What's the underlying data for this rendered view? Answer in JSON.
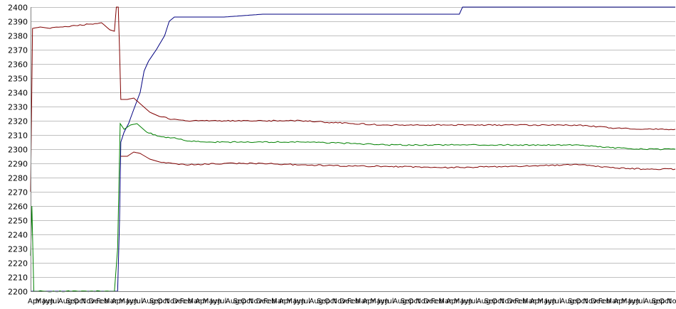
{
  "chart_data": {
    "type": "line",
    "title": "",
    "xlabel": "",
    "ylabel": "",
    "ylim": [
      2200,
      2400
    ],
    "y_ticks": [
      2200,
      2210,
      2220,
      2230,
      2240,
      2250,
      2260,
      2270,
      2280,
      2290,
      2300,
      2310,
      2320,
      2330,
      2340,
      2350,
      2360,
      2370,
      2380,
      2390,
      2400
    ],
    "grid": true,
    "legend": "none",
    "x_tick_labels": [
      "Apr",
      "May",
      "Jun",
      "Jul",
      "Aug",
      "Sep",
      "Oct",
      "Nov",
      "Dec",
      "Feb",
      "Mar",
      "Apr",
      "May",
      "Jun",
      "Jul",
      "Aug",
      "Sep",
      "Oct",
      "Nov",
      "Dec",
      "Feb",
      "Mar",
      "Apr",
      "May",
      "Jun",
      "Jul",
      "Aug",
      "Sep",
      "Oct",
      "Nov",
      "Dec",
      "Feb",
      "Mar",
      "Apr",
      "May",
      "Jun",
      "Jul",
      "Aug",
      "Sep",
      "Oct",
      "Nov",
      "Dec",
      "Feb",
      "Mar",
      "Apr",
      "May",
      "Jun",
      "Jul",
      "Aug",
      "Sep",
      "Oct",
      "Nov",
      "Dec",
      "Feb",
      "Mar",
      "Apr",
      "May",
      "Jun",
      "Jul",
      "Aug",
      "Sep",
      "Oct",
      "Nov",
      "Dec",
      "Feb",
      "Mar",
      "Apr",
      "May",
      "Jun",
      "Jul",
      "Aug",
      "Sep",
      "Oct",
      "Nov",
      "Dec",
      "Feb",
      "Mar",
      "Apr",
      "May",
      "Jun",
      "Jul",
      "Aug",
      "Sep",
      "Oct",
      "Nov"
    ],
    "x_range": [
      0,
      100
    ],
    "series": [
      {
        "color": "#000080",
        "points": [
          [
            0,
            2200
          ],
          [
            13.5,
            2200
          ],
          [
            13.8,
            2250
          ],
          [
            14.0,
            2305
          ],
          [
            14.5,
            2312
          ],
          [
            15.2,
            2318
          ],
          [
            16.0,
            2328
          ],
          [
            17.0,
            2340
          ],
          [
            17.6,
            2355
          ],
          [
            18.3,
            2362
          ],
          [
            19.5,
            2370
          ],
          [
            20.8,
            2380
          ],
          [
            21.5,
            2390
          ],
          [
            22.3,
            2393
          ],
          [
            30,
            2393
          ],
          [
            36,
            2395
          ],
          [
            50,
            2395
          ],
          [
            66.5,
            2395
          ],
          [
            67.0,
            2400
          ],
          [
            100,
            2400
          ]
        ]
      },
      {
        "color": "#008000",
        "points": [
          [
            0,
            2225
          ],
          [
            0.2,
            2260
          ],
          [
            0.5,
            2200
          ],
          [
            13.0,
            2200
          ],
          [
            13.5,
            2230
          ],
          [
            13.9,
            2318
          ],
          [
            14.5,
            2314
          ],
          [
            15.5,
            2317
          ],
          [
            16.5,
            2318
          ],
          [
            18.0,
            2312
          ],
          [
            20.0,
            2309
          ],
          [
            22.0,
            2308
          ],
          [
            24.0,
            2306
          ],
          [
            28.0,
            2305
          ],
          [
            35.0,
            2305
          ],
          [
            42.0,
            2305
          ],
          [
            50.0,
            2304
          ],
          [
            55.0,
            2303
          ],
          [
            65.0,
            2303
          ],
          [
            75.0,
            2303
          ],
          [
            85.0,
            2303
          ],
          [
            90.0,
            2301
          ],
          [
            95.0,
            2300
          ],
          [
            100.0,
            2300
          ]
        ]
      },
      {
        "color": "#800000",
        "points": [
          [
            0,
            2270
          ],
          [
            0.3,
            2385
          ],
          [
            1.5,
            2386
          ],
          [
            3.0,
            2385
          ],
          [
            5.0,
            2386
          ],
          [
            7.0,
            2387
          ],
          [
            9.0,
            2388
          ],
          [
            11.0,
            2389
          ],
          [
            12.3,
            2384
          ],
          [
            13.0,
            2383
          ],
          [
            13.3,
            2400
          ],
          [
            13.6,
            2400
          ],
          [
            13.8,
            2370
          ],
          [
            14.0,
            2335
          ],
          [
            15.0,
            2335
          ],
          [
            16.0,
            2336
          ],
          [
            17.0,
            2332
          ],
          [
            18.5,
            2326
          ],
          [
            20.0,
            2323
          ],
          [
            22.0,
            2321
          ],
          [
            24.0,
            2320
          ],
          [
            30.0,
            2320
          ],
          [
            36.0,
            2320
          ],
          [
            42.0,
            2320
          ],
          [
            50.0,
            2318
          ],
          [
            55.0,
            2317
          ],
          [
            65.0,
            2317
          ],
          [
            75.0,
            2317
          ],
          [
            80.0,
            2317
          ],
          [
            85.0,
            2317
          ],
          [
            90.0,
            2315
          ],
          [
            95.0,
            2314
          ],
          [
            100.0,
            2314
          ]
        ]
      },
      {
        "color": "#800000",
        "points": [
          [
            14.0,
            2295
          ],
          [
            15.0,
            2295
          ],
          [
            16.0,
            2298
          ],
          [
            17.0,
            2297
          ],
          [
            18.5,
            2293
          ],
          [
            20.0,
            2291
          ],
          [
            22.0,
            2290
          ],
          [
            24.0,
            2289
          ],
          [
            30.0,
            2290
          ],
          [
            36.0,
            2290
          ],
          [
            42.0,
            2289
          ],
          [
            50.0,
            2288
          ],
          [
            55.0,
            2288
          ],
          [
            65.0,
            2287
          ],
          [
            75.0,
            2288
          ],
          [
            85.0,
            2289
          ],
          [
            90.0,
            2287
          ],
          [
            95.0,
            2286
          ],
          [
            100.0,
            2286
          ]
        ]
      }
    ]
  }
}
